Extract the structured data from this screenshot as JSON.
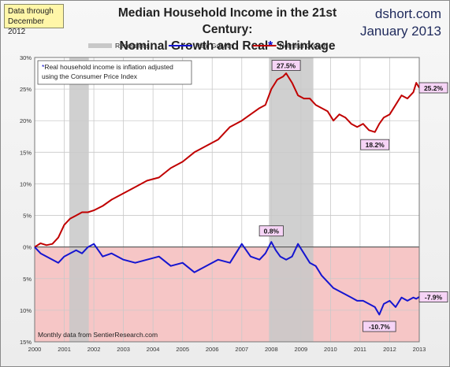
{
  "header": {
    "data_through_line1": "Data through",
    "data_through_line2": "December 2012",
    "title_line1": "Median Household Income in the 21st Century:",
    "title_line2_a": "Nominal  Growth and Real",
    "title_line2_star": "*",
    "title_line2_b": " Shrinkage",
    "source_site": "dshort.com",
    "source_date": "January 2013"
  },
  "colors": {
    "nominal": "#c00000",
    "real": "#1515d0",
    "recession": "#c8c8c8",
    "negative_zone": "#f6c6c6",
    "callout_bg": "#f6d4f6"
  },
  "chart_data": {
    "type": "line",
    "xlim": [
      2000,
      2013
    ],
    "ylim": [
      -15,
      30
    ],
    "x_ticks": [
      "2000",
      "2001",
      "2002",
      "2003",
      "2004",
      "2005",
      "2006",
      "2007",
      "2008",
      "2009",
      "2010",
      "2011",
      "2012",
      "2013"
    ],
    "y_ticks": [
      {
        "value": 30,
        "label": "30%"
      },
      {
        "value": 25,
        "label": "25%"
      },
      {
        "value": 20,
        "label": "20%"
      },
      {
        "value": 15,
        "label": "15%"
      },
      {
        "value": 10,
        "label": "10%"
      },
      {
        "value": 5,
        "label": "5%"
      },
      {
        "value": 0,
        "label": "0%"
      },
      {
        "value": -5,
        "label": "5%"
      },
      {
        "value": -10,
        "label": "10%"
      },
      {
        "value": -15,
        "label": "15%"
      }
    ],
    "grid": true,
    "legend": {
      "placement": "top",
      "items": [
        {
          "label": "Recessions",
          "kind": "recession"
        },
        {
          "label": "Real Growth",
          "kind": "real"
        },
        {
          "label": "Nominal Growth",
          "kind": "nominal"
        }
      ]
    },
    "recessions": [
      {
        "start": 2001.17,
        "end": 2001.83
      },
      {
        "start": 2007.92,
        "end": 2009.42
      }
    ],
    "footnote_line1_star": "*",
    "footnote_line1": "Real household  income is inflation adjusted",
    "footnote_line2": "using the Consumer Price Index",
    "bottom_note": "Monthly data from SentierResearch.com",
    "series": [
      {
        "name": "Nominal Growth",
        "color": "#c00000",
        "x": [
          2000.0,
          2000.2,
          2000.4,
          2000.6,
          2000.8,
          2001.0,
          2001.2,
          2001.4,
          2001.6,
          2001.8,
          2002.0,
          2002.3,
          2002.6,
          2003.0,
          2003.4,
          2003.8,
          2004.2,
          2004.6,
          2005.0,
          2005.4,
          2005.8,
          2006.2,
          2006.6,
          2007.0,
          2007.3,
          2007.6,
          2007.8,
          2008.0,
          2008.2,
          2008.4,
          2008.5,
          2008.7,
          2008.9,
          2009.1,
          2009.3,
          2009.5,
          2009.7,
          2009.9,
          2010.1,
          2010.3,
          2010.5,
          2010.7,
          2010.9,
          2011.1,
          2011.3,
          2011.5,
          2011.65,
          2011.8,
          2012.0,
          2012.2,
          2012.4,
          2012.6,
          2012.8,
          2012.9,
          2013.0
        ],
        "y": [
          0.0,
          0.6,
          0.3,
          0.5,
          1.5,
          3.5,
          4.5,
          5.0,
          5.5,
          5.5,
          5.8,
          6.5,
          7.5,
          8.5,
          9.5,
          10.5,
          11.0,
          12.5,
          13.5,
          15.0,
          16.0,
          17.0,
          19.0,
          20.0,
          21.0,
          22.0,
          22.5,
          25.0,
          26.5,
          27.0,
          27.5,
          26.0,
          24.0,
          23.5,
          23.5,
          22.5,
          22.0,
          21.5,
          20.0,
          21.0,
          20.5,
          19.5,
          19.0,
          19.5,
          18.5,
          18.2,
          19.5,
          20.5,
          21.0,
          22.5,
          24.0,
          23.5,
          24.5,
          26.0,
          25.2
        ]
      },
      {
        "name": "Real Growth",
        "color": "#1515d0",
        "x": [
          2000.0,
          2000.2,
          2000.4,
          2000.6,
          2000.8,
          2001.0,
          2001.2,
          2001.4,
          2001.6,
          2001.8,
          2002.0,
          2002.3,
          2002.6,
          2003.0,
          2003.4,
          2003.8,
          2004.2,
          2004.6,
          2005.0,
          2005.4,
          2005.8,
          2006.2,
          2006.6,
          2007.0,
          2007.3,
          2007.6,
          2007.8,
          2008.0,
          2008.15,
          2008.3,
          2008.5,
          2008.7,
          2008.9,
          2009.1,
          2009.3,
          2009.5,
          2009.7,
          2009.9,
          2010.1,
          2010.3,
          2010.5,
          2010.7,
          2010.9,
          2011.1,
          2011.3,
          2011.5,
          2011.65,
          2011.8,
          2012.0,
          2012.2,
          2012.4,
          2012.6,
          2012.8,
          2012.9,
          2013.0
        ],
        "y": [
          0.0,
          -1.0,
          -1.5,
          -2.0,
          -2.5,
          -1.5,
          -1.0,
          -0.5,
          -1.0,
          0.0,
          0.5,
          -1.5,
          -1.0,
          -2.0,
          -2.5,
          -2.0,
          -1.5,
          -3.0,
          -2.5,
          -4.0,
          -3.0,
          -2.0,
          -2.5,
          0.5,
          -1.5,
          -2.0,
          -1.0,
          0.8,
          -0.5,
          -1.5,
          -2.0,
          -1.5,
          0.5,
          -1.0,
          -2.5,
          -3.0,
          -4.5,
          -5.5,
          -6.5,
          -7.0,
          -7.5,
          -8.0,
          -8.5,
          -8.5,
          -9.0,
          -9.5,
          -10.7,
          -9.0,
          -8.5,
          -9.5,
          -8.0,
          -8.5,
          -8.0,
          -8.2,
          -7.9
        ]
      }
    ],
    "callouts": [
      {
        "label": "27.5%",
        "x": 2008.5,
        "y": 27.5,
        "series": "Nominal Growth"
      },
      {
        "label": "18.2%",
        "x": 2011.5,
        "y": 18.2,
        "series": "Nominal Growth"
      },
      {
        "label": "25.2%",
        "x": 2013.0,
        "y": 25.2,
        "series": "Nominal Growth"
      },
      {
        "label": "0.8%",
        "x": 2008.0,
        "y": 0.8,
        "series": "Real Growth"
      },
      {
        "label": "-10.7%",
        "x": 2011.65,
        "y": -10.7,
        "series": "Real Growth"
      },
      {
        "label": "-7.9%",
        "x": 2013.0,
        "y": -7.9,
        "series": "Real Growth"
      }
    ]
  }
}
